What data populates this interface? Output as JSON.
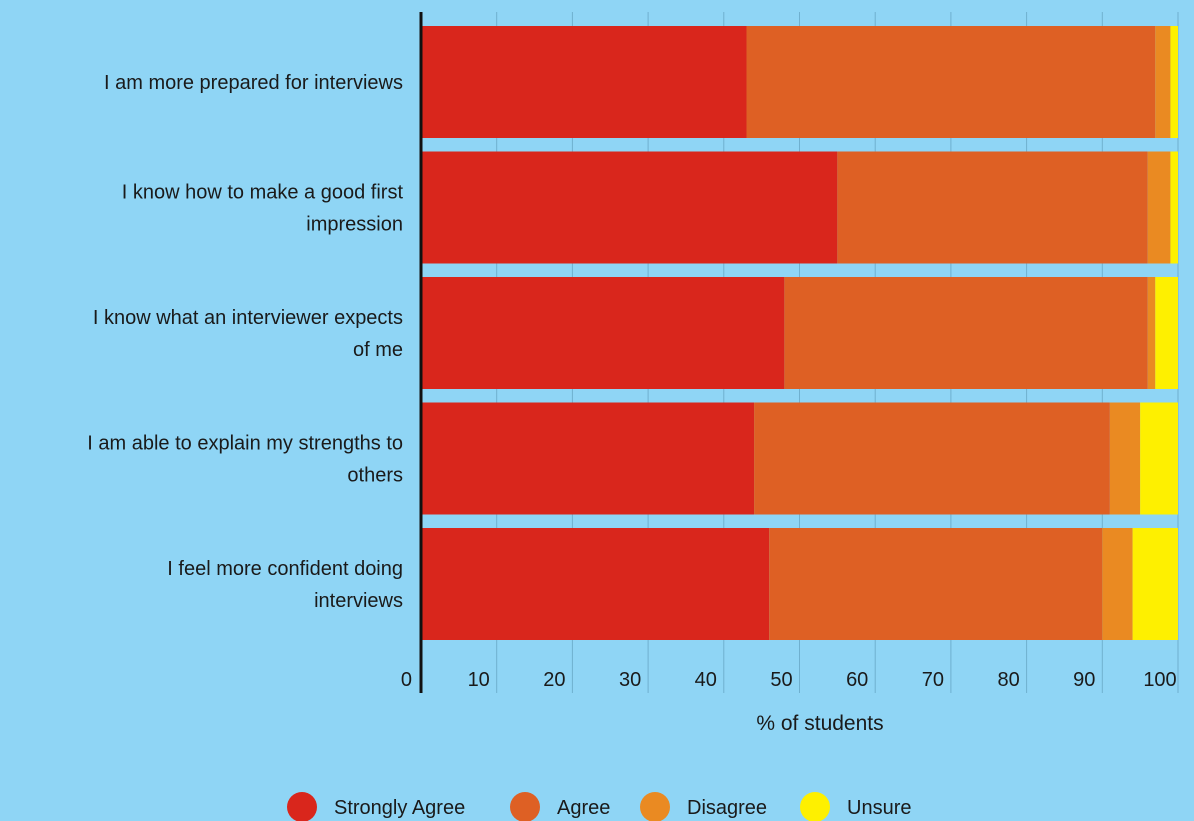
{
  "chart_data": {
    "type": "bar",
    "orientation": "horizontal",
    "stacked": true,
    "categories": [
      "I am more prepared for interviews",
      "I know how to make a good first impression",
      "I know what an interviewer expects of me",
      "I am able to explain my strengths to others",
      "I feel more confident doing interviews"
    ],
    "category_lines": [
      [
        "I am more prepared for interviews"
      ],
      [
        "I know how to make a good first",
        "impression"
      ],
      [
        "I know what an interviewer expects",
        "of me"
      ],
      [
        "I am able to explain my strengths to",
        "others"
      ],
      [
        "I feel more confident doing",
        "interviews"
      ]
    ],
    "series": [
      {
        "name": "Strongly Agree",
        "color": "#d9261c",
        "values": [
          43,
          55,
          48,
          44,
          46
        ]
      },
      {
        "name": "Agree",
        "color": "#de6024",
        "values": [
          54,
          41,
          48,
          47,
          44
        ]
      },
      {
        "name": "Disagree",
        "color": "#ea8a22",
        "values": [
          2,
          3,
          1,
          4,
          4
        ]
      },
      {
        "name": "Unsure",
        "color": "#fef000",
        "values": [
          1,
          1,
          3,
          5,
          6
        ]
      }
    ],
    "xlabel": "% of students",
    "ylabel": "",
    "xlim": [
      0,
      100
    ],
    "xticks": [
      0,
      10,
      20,
      30,
      40,
      50,
      60,
      70,
      80,
      90,
      100
    ],
    "grid": true,
    "legend_position": "bottom-center",
    "background_color": "#8fd5f5",
    "grid_color": "#6fb0cf"
  }
}
